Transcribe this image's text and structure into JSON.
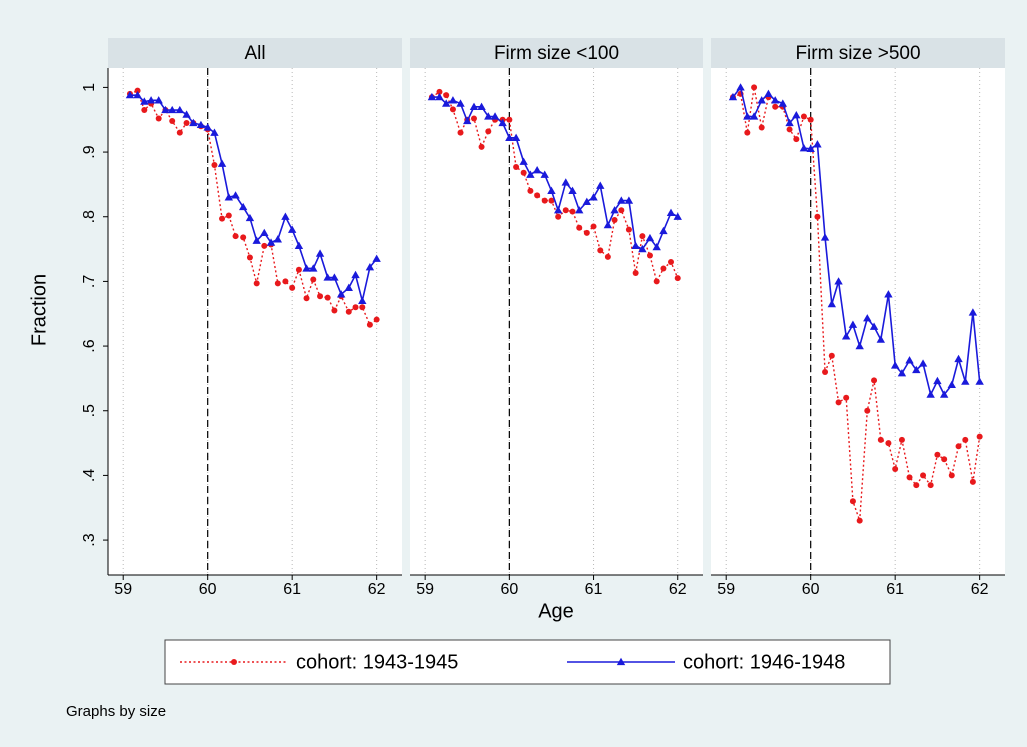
{
  "chart_data": {
    "type": "line",
    "xlabel": "Age",
    "ylabel": "Fraction",
    "note": "Graphs by size",
    "grid": true,
    "vline": 60,
    "legend": "bottom",
    "x": [
      59.08,
      59.17,
      59.25,
      59.33,
      59.42,
      59.5,
      59.58,
      59.67,
      59.75,
      59.83,
      59.92,
      60,
      60.08,
      60.17,
      60.25,
      60.33,
      60.42,
      60.5,
      60.58,
      60.67,
      60.75,
      60.83,
      60.92,
      61,
      61.08,
      61.17,
      61.25,
      61.33,
      61.42,
      61.5,
      61.58,
      61.67,
      61.75,
      61.83,
      61.92,
      62
    ],
    "xlim": [
      58.82,
      62.3
    ],
    "xticks": [
      59,
      60,
      61,
      62
    ],
    "ylim": [
      0.246,
      1.03
    ],
    "yticks": [
      {
        "value": 0.3,
        "label": ".3"
      },
      {
        "value": 0.4,
        "label": ".4"
      },
      {
        "value": 0.5,
        "label": ".5"
      },
      {
        "value": 0.6,
        "label": ".6"
      },
      {
        "value": 0.7,
        "label": ".7"
      },
      {
        "value": 0.8,
        "label": ".8"
      },
      {
        "value": 0.9,
        "label": ".9"
      },
      1
    ],
    "series": [
      {
        "name": "cohort: 1943-1945",
        "color": "#e8191c",
        "marker": "circle",
        "line": "dotted"
      },
      {
        "name": "cohort: 1946-1948",
        "color": "#1a1adb",
        "marker": "triangle",
        "line": "solid"
      }
    ],
    "panels": [
      {
        "title": "All",
        "values": [
          [
            0.99,
            0.995,
            0.965,
            0.975,
            0.952,
            0.965,
            0.948,
            0.93,
            0.945,
            0.945,
            0.94,
            0.935,
            0.88,
            0.797,
            0.802,
            0.77,
            0.768,
            0.737,
            0.697,
            0.755,
            0.757,
            0.697,
            0.7,
            0.69,
            0.718,
            0.674,
            0.703,
            0.677,
            0.675,
            0.655,
            0.677,
            0.653,
            0.66,
            0.66,
            0.633,
            0.641
          ],
          [
            0.988,
            0.988,
            0.978,
            0.98,
            0.98,
            0.965,
            0.965,
            0.965,
            0.958,
            0.945,
            0.942,
            0.938,
            0.93,
            0.882,
            0.83,
            0.833,
            0.815,
            0.798,
            0.763,
            0.775,
            0.76,
            0.765,
            0.8,
            0.78,
            0.755,
            0.72,
            0.72,
            0.743,
            0.706,
            0.706,
            0.68,
            0.69,
            0.71,
            0.67,
            0.722,
            0.735
          ]
        ]
      },
      {
        "title": "Firm size <100",
        "values": [
          [
            0.985,
            0.993,
            0.988,
            0.966,
            0.93,
            0.95,
            0.952,
            0.908,
            0.932,
            0.95,
            0.95,
            0.95,
            0.877,
            0.868,
            0.84,
            0.833,
            0.825,
            0.825,
            0.8,
            0.81,
            0.808,
            0.783,
            0.775,
            0.785,
            0.748,
            0.738,
            0.795,
            0.81,
            0.78,
            0.713,
            0.77,
            0.74,
            0.7,
            0.72,
            0.73,
            0.705
          ],
          [
            0.985,
            0.985,
            0.975,
            0.98,
            0.975,
            0.948,
            0.97,
            0.97,
            0.955,
            0.955,
            0.945,
            0.922,
            0.922,
            0.885,
            0.865,
            0.872,
            0.865,
            0.84,
            0.81,
            0.853,
            0.84,
            0.81,
            0.823,
            0.83,
            0.848,
            0.787,
            0.81,
            0.825,
            0.825,
            0.755,
            0.75,
            0.767,
            0.753,
            0.778,
            0.806,
            0.8
          ]
        ]
      },
      {
        "title": "Firm size >500",
        "values": [
          [
            0.985,
            0.99,
            0.93,
            1.0,
            0.938,
            0.985,
            0.97,
            0.97,
            0.935,
            0.92,
            0.955,
            0.95,
            0.8,
            0.56,
            0.585,
            0.513,
            0.52,
            0.36,
            0.33,
            0.5,
            0.547,
            0.455,
            0.45,
            0.41,
            0.455,
            0.397,
            0.385,
            0.4,
            0.385,
            0.432,
            0.425,
            0.4,
            0.445,
            0.455,
            0.39,
            0.46
          ],
          [
            0.985,
            1.0,
            0.955,
            0.955,
            0.98,
            0.99,
            0.98,
            0.975,
            0.945,
            0.957,
            0.906,
            0.905,
            0.912,
            0.768,
            0.665,
            0.7,
            0.615,
            0.633,
            0.6,
            0.643,
            0.63,
            0.61,
            0.68,
            0.57,
            0.558,
            0.578,
            0.563,
            0.573,
            0.525,
            0.546,
            0.525,
            0.54,
            0.58,
            0.545,
            0.652,
            0.545
          ]
        ]
      }
    ]
  }
}
